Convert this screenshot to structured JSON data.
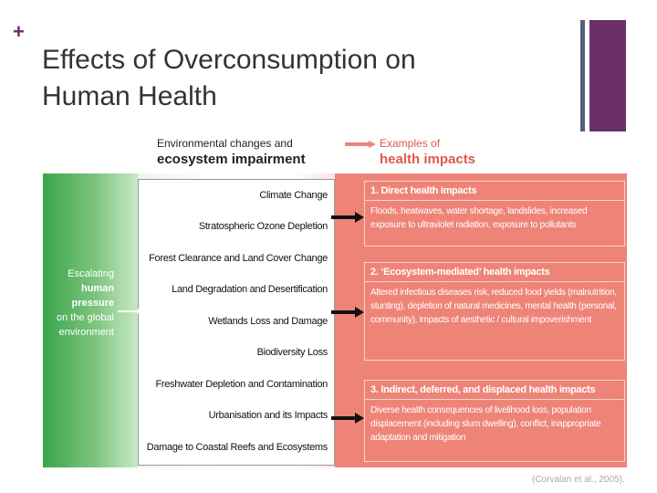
{
  "slide": {
    "plus": "+",
    "title_line1": "Effects of Overconsumption on",
    "title_line2": "Human Health"
  },
  "diagram": {
    "header_left_line1": "Environmental changes and",
    "header_left_line2": "ecosystem impairment",
    "header_right_line1": "Examples of",
    "header_right_line2": "health impacts",
    "pressure_l1": "Escalating",
    "pressure_l2": "human",
    "pressure_l3": "pressure",
    "pressure_l4": "on the global",
    "pressure_l5": "environment",
    "env_items": [
      "Climate Change",
      "Stratospheric Ozone Depletion",
      "Forest Clearance and Land Cover Change",
      "Land Degradation and Desertification",
      "Wetlands Loss and Damage",
      "Biodiversity Loss",
      "Freshwater Depletion and Contamination",
      "Urbanisation and its Impacts",
      "Damage to Coastal Reefs and Ecosystems"
    ],
    "impacts": [
      {
        "heading": "1. Direct health impacts",
        "body": "Floods, heatwaves, water shortage, landslides, increased exposure to ultraviolet radiation, exposure to pollutants"
      },
      {
        "heading": "2. ‘Ecosystem-mediated’ health impacts",
        "body": "Altered infectious diseases risk, reduced food yields (malnutrition, stunting), depletion of natural medicines, mental health (personal, community), impacts of aesthetic / cultural impoverishment"
      },
      {
        "heading": "3. Indirect, deferred, and displaced health impacts",
        "body": "Diverse health consequences of livelihood loss, population displacement (including slum dwelling), conflict, inappropriate adaptation and mitigation"
      }
    ],
    "citation": "(Corvalan et al., 2005)."
  },
  "colors": {
    "accent_purple": "#6a2f66",
    "green": "#38a64a",
    "pink": "#ee8478",
    "header_red": "#e0574e"
  }
}
